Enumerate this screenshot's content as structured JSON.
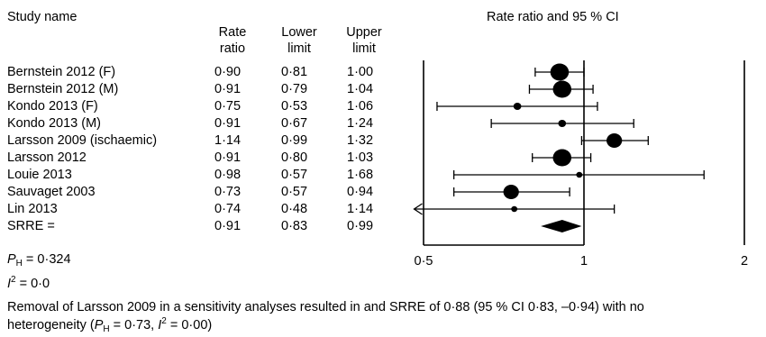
{
  "headers": {
    "study": "Study name",
    "rate": [
      "Rate",
      "ratio"
    ],
    "lower": [
      "Lower",
      "limit"
    ],
    "upper": [
      "Upper",
      "limit"
    ],
    "plot": "Rate ratio and 95 % CI"
  },
  "rows": [
    {
      "name": "Bernstein 2012 (F)",
      "rr": "0·90",
      "lo": "0·81",
      "hi": "1·00"
    },
    {
      "name": "Bernstein 2012 (M)",
      "rr": "0·91",
      "lo": "0·79",
      "hi": "1·04"
    },
    {
      "name": "Kondo 2013 (F)",
      "rr": "0·75",
      "lo": "0·53",
      "hi": "1·06"
    },
    {
      "name": "Kondo 2013 (M)",
      "rr": "0·91",
      "lo": "0·67",
      "hi": "1·24"
    },
    {
      "name": "Larsson 2009 (ischaemic)",
      "rr": "1·14",
      "lo": "0·99",
      "hi": "1·32"
    },
    {
      "name": "Larsson 2012",
      "rr": "0·91",
      "lo": "0·80",
      "hi": "1·03"
    },
    {
      "name": "Louie 2013",
      "rr": "0·98",
      "lo": "0·57",
      "hi": "1·68"
    },
    {
      "name": "Sauvaget 2003",
      "rr": "0·73",
      "lo": "0·57",
      "hi": "0·94"
    },
    {
      "name": "Lin 2013",
      "rr": "0·74",
      "lo": "0·48",
      "hi": "1·14"
    },
    {
      "name": "SRRE =",
      "rr": "0·91",
      "lo": "0·83",
      "hi": "0·99"
    }
  ],
  "stats": {
    "ph_label": "P",
    "ph_sub": "H",
    "ph_value": " = 0·324",
    "i2_label": "I",
    "i2_sup": "2",
    "i2_value": " = 0·0"
  },
  "footnote": {
    "line1": "Removal of Larsson 2009 in a sensitivity analyses resulted in and SRRE of 0·88 (95 % CI 0·83, –0·94) with no",
    "line2_pre": "heterogeneity (",
    "line2_p": "P",
    "line2_psub": "H",
    "line2_mid": " = 0·73, ",
    "line2_i": "I",
    "line2_isup": "2",
    "line2_post": " = 0·00)"
  },
  "chart_data": {
    "type": "forest",
    "title": "Rate ratio and 95 % CI",
    "scale": "log",
    "xlim": [
      0.5,
      2
    ],
    "xticks": [
      {
        "value": 0.5,
        "label": "0·5"
      },
      {
        "value": 1,
        "label": "1"
      },
      {
        "value": 2,
        "label": "2"
      }
    ],
    "studies": [
      {
        "name": "Bernstein 2012 (F)",
        "rr": 0.9,
        "lower": 0.81,
        "upper": 1.0,
        "weight": "large"
      },
      {
        "name": "Bernstein 2012 (M)",
        "rr": 0.91,
        "lower": 0.79,
        "upper": 1.04,
        "weight": "large"
      },
      {
        "name": "Kondo 2013 (F)",
        "rr": 0.75,
        "lower": 0.53,
        "upper": 1.06,
        "weight": "small"
      },
      {
        "name": "Kondo 2013 (M)",
        "rr": 0.91,
        "lower": 0.67,
        "upper": 1.24,
        "weight": "small"
      },
      {
        "name": "Larsson 2009 (ischaemic)",
        "rr": 1.14,
        "lower": 0.99,
        "upper": 1.32,
        "weight": "medium"
      },
      {
        "name": "Larsson 2012",
        "rr": 0.91,
        "lower": 0.8,
        "upper": 1.03,
        "weight": "large"
      },
      {
        "name": "Louie 2013",
        "rr": 0.98,
        "lower": 0.57,
        "upper": 1.68,
        "weight": "tiny"
      },
      {
        "name": "Sauvaget 2003",
        "rr": 0.73,
        "lower": 0.57,
        "upper": 0.94,
        "weight": "medium"
      },
      {
        "name": "Lin 2013",
        "rr": 0.74,
        "lower": 0.48,
        "upper": 1.14,
        "weight": "tiny",
        "lower_truncated": true
      }
    ],
    "summary": {
      "name": "SRRE =",
      "rr": 0.91,
      "lower": 0.83,
      "upper": 0.99
    }
  }
}
